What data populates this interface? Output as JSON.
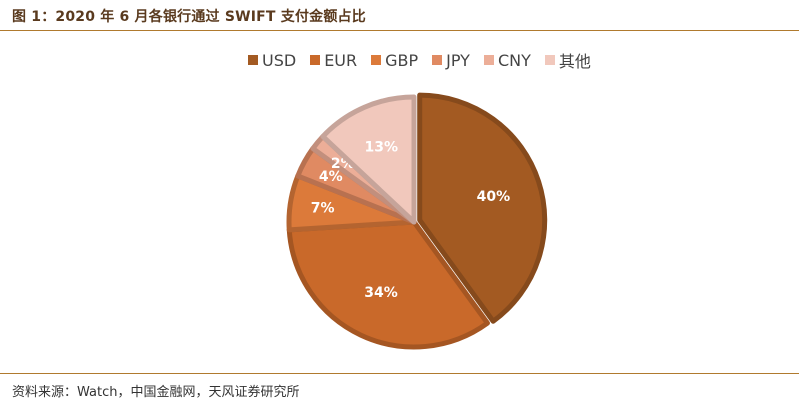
{
  "figure": {
    "title": "图 1：2020 年 6 月各银行通过 SWIFT 支付金额占比",
    "source": "资料来源：Watch，中国金融网，天风证券研究所"
  },
  "chart_data": {
    "type": "pie",
    "legend_position": "top",
    "categories": [
      "USD",
      "EUR",
      "GBP",
      "JPY",
      "CNY",
      "其他"
    ],
    "values": [
      40,
      34,
      7,
      4,
      2,
      13
    ],
    "labels": [
      "40%",
      "34%",
      "7%",
      "4%",
      "2%",
      "13%"
    ],
    "colors": [
      "#a35a22",
      "#c9692a",
      "#dc7a3a",
      "#e08a62",
      "#ecae98",
      "#f1c8bc"
    ]
  }
}
